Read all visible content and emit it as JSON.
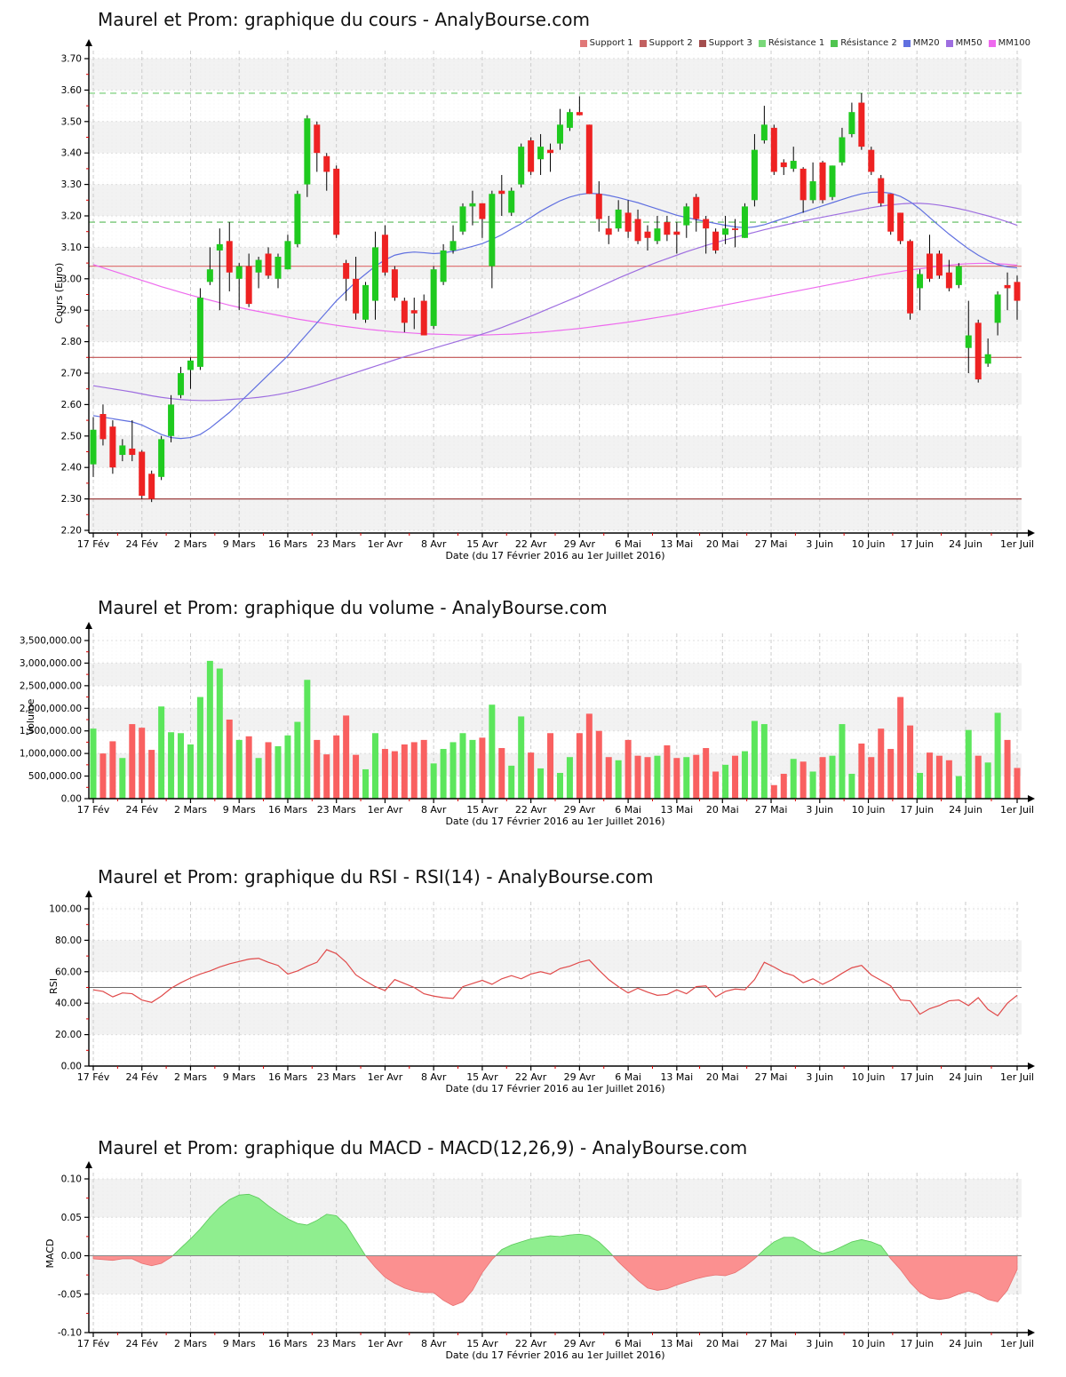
{
  "legend": {
    "items": [
      {
        "label": "Support 1",
        "color": "#e07878"
      },
      {
        "label": "Support 2",
        "color": "#c26060"
      },
      {
        "label": "Support 3",
        "color": "#a34d4d"
      },
      {
        "label": "Résistance 1",
        "color": "#79d879"
      },
      {
        "label": "Résistance 2",
        "color": "#4fc44f"
      },
      {
        "label": "MM20",
        "color": "#6070e0"
      },
      {
        "label": "MM50",
        "color": "#9e6ee0"
      },
      {
        "label": "MM100",
        "color": "#ee6aee"
      }
    ]
  },
  "x_axis": {
    "label": "Date (du 17 Février 2016 au 1er Juillet 2016)",
    "tick_labels": [
      "17 Fév",
      "24 Fév",
      "2 Mars",
      "9 Mars",
      "16 Mars",
      "23 Mars",
      "1er Avr",
      "8 Avr",
      "15 Avr",
      "22 Avr",
      "29 Avr",
      "6 Mai",
      "13 Mai",
      "20 Mai",
      "27 Mai",
      "3 Juin",
      "10 Juin",
      "17 Juin",
      "24 Juin",
      "1er Juil"
    ],
    "tick_positions": [
      0,
      5,
      10,
      15,
      20,
      25,
      30,
      35,
      40,
      45,
      50,
      55,
      60,
      64.7,
      69.7,
      74.7,
      79.7,
      84.7,
      89.7,
      95
    ]
  },
  "chart_data": [
    {
      "type": "candlestick",
      "title": "Maurel et Prom: graphique du cours - AnalyBourse.com",
      "ylabel": "Cours (Euro)",
      "xlabel": "Date (du 17 Février 2016 au 1er Juillet 2016)",
      "ylim": [
        2.2,
        3.7
      ],
      "y_ticks": [
        "2.20",
        "2.30",
        "2.40",
        "2.50",
        "2.60",
        "2.70",
        "2.80",
        "2.90",
        "3.00",
        "3.10",
        "3.20",
        "3.30",
        "3.40",
        "3.50",
        "3.60",
        "3.70"
      ],
      "colors": {
        "up": "#1fca1f",
        "down": "#ee2222",
        "wick": "#000000"
      },
      "levels": {
        "supports": [
          {
            "label": "Support 1",
            "value": 3.04,
            "color": "#e07878"
          },
          {
            "label": "Support 2",
            "value": 2.75,
            "color": "#c05050"
          },
          {
            "label": "Support 3",
            "value": 2.3,
            "color": "#9c3e3e"
          }
        ],
        "resistances": [
          {
            "label": "Résistance 1",
            "value": 3.59,
            "color": "#6cc96c"
          },
          {
            "label": "Résistance 2",
            "value": 3.18,
            "color": "#57bb57"
          }
        ]
      },
      "series": {
        "open": [
          2.41,
          2.57,
          2.53,
          2.44,
          2.46,
          2.45,
          2.38,
          2.37,
          2.5,
          2.63,
          2.71,
          2.72,
          2.99,
          3.09,
          3.12,
          3.0,
          3.04,
          3.02,
          3.08,
          3.0,
          3.03,
          3.11,
          3.3,
          3.49,
          3.39,
          3.35,
          3.05,
          3.0,
          2.87,
          2.93,
          3.14,
          3.03,
          2.93,
          2.9,
          2.93,
          2.85,
          2.99,
          3.09,
          3.15,
          3.23,
          3.24,
          3.04,
          3.28,
          3.21,
          3.3,
          3.44,
          3.38,
          3.41,
          3.43,
          3.48,
          3.53,
          3.49,
          3.27,
          3.16,
          3.16,
          3.21,
          3.19,
          3.15,
          3.12,
          3.18,
          3.15,
          3.17,
          3.26,
          3.19,
          3.15,
          3.14,
          3.16,
          3.13,
          3.25,
          3.44,
          3.48,
          3.37,
          3.35,
          3.35,
          3.25,
          3.37,
          3.26,
          3.37,
          3.46,
          3.56,
          3.41,
          3.32,
          3.27,
          3.21,
          3.12,
          2.97,
          3.08,
          3.08,
          3.02,
          2.98,
          2.78,
          2.86,
          2.73,
          2.86,
          2.98,
          2.99
        ],
        "high": [
          2.56,
          2.6,
          2.55,
          2.49,
          2.55,
          2.455,
          2.39,
          2.5,
          2.63,
          2.72,
          2.75,
          2.97,
          3.1,
          3.16,
          3.18,
          3.05,
          3.08,
          3.07,
          3.1,
          3.08,
          3.14,
          3.28,
          3.52,
          3.5,
          3.4,
          3.36,
          3.06,
          3.07,
          2.99,
          3.15,
          3.17,
          3.04,
          2.94,
          2.94,
          2.95,
          3.04,
          3.11,
          3.17,
          3.24,
          3.28,
          3.24,
          3.28,
          3.33,
          3.29,
          3.43,
          3.45,
          3.46,
          3.43,
          3.54,
          3.54,
          3.58,
          3.49,
          3.31,
          3.2,
          3.25,
          3.25,
          3.22,
          3.17,
          3.2,
          3.2,
          3.18,
          3.24,
          3.27,
          3.2,
          3.16,
          3.2,
          3.19,
          3.24,
          3.46,
          3.55,
          3.49,
          3.38,
          3.42,
          3.355,
          3.37,
          3.375,
          3.36,
          3.48,
          3.56,
          3.59,
          3.42,
          3.33,
          3.27,
          3.21,
          3.125,
          3.03,
          3.14,
          3.09,
          3.06,
          3.05,
          2.93,
          2.87,
          2.81,
          2.96,
          3.02,
          3.01
        ],
        "low": [
          2.37,
          2.47,
          2.38,
          2.42,
          2.42,
          2.3,
          2.29,
          2.36,
          2.48,
          2.62,
          2.65,
          2.71,
          2.98,
          2.9,
          2.96,
          2.9,
          2.91,
          2.97,
          3.0,
          2.97,
          3.03,
          3.1,
          3.26,
          3.34,
          3.28,
          3.13,
          2.93,
          2.87,
          2.86,
          2.87,
          3.01,
          2.93,
          2.83,
          2.84,
          2.82,
          2.84,
          2.98,
          3.08,
          3.14,
          3.17,
          3.13,
          2.97,
          3.2,
          3.2,
          3.29,
          3.33,
          3.33,
          3.34,
          3.41,
          3.47,
          3.52,
          3.27,
          3.15,
          3.11,
          3.15,
          3.13,
          3.11,
          3.09,
          3.11,
          3.12,
          3.08,
          3.13,
          3.15,
          3.08,
          3.08,
          3.11,
          3.1,
          3.13,
          3.23,
          3.43,
          3.33,
          3.33,
          3.34,
          3.21,
          3.24,
          3.24,
          3.25,
          3.36,
          3.45,
          3.41,
          3.33,
          3.23,
          3.14,
          3.11,
          2.87,
          2.9,
          2.99,
          3.0,
          2.96,
          2.97,
          2.7,
          2.67,
          2.72,
          2.82,
          2.9,
          2.87
        ],
        "close": [
          2.52,
          2.49,
          2.4,
          2.47,
          2.44,
          2.31,
          2.3,
          2.49,
          2.6,
          2.7,
          2.74,
          2.94,
          3.03,
          3.11,
          3.02,
          3.04,
          2.92,
          3.06,
          3.01,
          3.07,
          3.12,
          3.27,
          3.51,
          3.4,
          3.34,
          3.14,
          3.0,
          2.89,
          2.98,
          3.1,
          3.02,
          2.94,
          2.86,
          2.89,
          2.82,
          3.03,
          3.09,
          3.12,
          3.23,
          3.24,
          3.19,
          3.27,
          3.27,
          3.28,
          3.42,
          3.34,
          3.42,
          3.4,
          3.49,
          3.53,
          3.52,
          3.27,
          3.19,
          3.14,
          3.22,
          3.15,
          3.12,
          3.13,
          3.16,
          3.14,
          3.14,
          3.23,
          3.19,
          3.16,
          3.09,
          3.16,
          3.155,
          3.23,
          3.41,
          3.49,
          3.34,
          3.355,
          3.375,
          3.25,
          3.31,
          3.25,
          3.36,
          3.45,
          3.53,
          3.42,
          3.34,
          3.24,
          3.15,
          3.12,
          2.89,
          3.015,
          3.0,
          3.01,
          2.97,
          3.04,
          2.82,
          2.68,
          2.76,
          2.95,
          2.97,
          2.93
        ]
      },
      "overlays": {
        "mm20": [
          2.565,
          2.56,
          2.555,
          2.55,
          2.545,
          2.535,
          2.52,
          2.505,
          2.495,
          2.492,
          2.495,
          2.505,
          2.525,
          2.55,
          2.575,
          2.605,
          2.635,
          2.665,
          2.695,
          2.725,
          2.755,
          2.79,
          2.825,
          2.86,
          2.895,
          2.93,
          2.96,
          2.99,
          3.015,
          3.04,
          3.06,
          3.075,
          3.082,
          3.085,
          3.083,
          3.08,
          3.082,
          3.088,
          3.095,
          3.103,
          3.112,
          3.125,
          3.14,
          3.158,
          3.175,
          3.195,
          3.215,
          3.232,
          3.248,
          3.26,
          3.268,
          3.272,
          3.27,
          3.265,
          3.258,
          3.25,
          3.242,
          3.232,
          3.222,
          3.212,
          3.202,
          3.195,
          3.188,
          3.182,
          3.176,
          3.17,
          3.165,
          3.162,
          3.165,
          3.172,
          3.182,
          3.192,
          3.202,
          3.212,
          3.222,
          3.232,
          3.242,
          3.252,
          3.262,
          3.27,
          3.275,
          3.276,
          3.272,
          3.262,
          3.245,
          3.222,
          3.195,
          3.168,
          3.142,
          3.118,
          3.095,
          3.075,
          3.058,
          3.045,
          3.038,
          3.035
        ],
        "mm50": [
          2.66,
          2.655,
          2.65,
          2.645,
          2.64,
          2.634,
          2.628,
          2.623,
          2.619,
          2.616,
          2.614,
          2.613,
          2.613,
          2.614,
          2.616,
          2.618,
          2.62,
          2.623,
          2.627,
          2.632,
          2.638,
          2.645,
          2.653,
          2.662,
          2.672,
          2.682,
          2.692,
          2.702,
          2.712,
          2.722,
          2.732,
          2.742,
          2.752,
          2.761,
          2.77,
          2.779,
          2.788,
          2.797,
          2.806,
          2.815,
          2.824,
          2.834,
          2.845,
          2.857,
          2.869,
          2.881,
          2.894,
          2.907,
          2.92,
          2.933,
          2.946,
          2.96,
          2.974,
          2.988,
          3.002,
          3.015,
          3.028,
          3.041,
          3.053,
          3.064,
          3.075,
          3.086,
          3.096,
          3.106,
          3.115,
          3.124,
          3.132,
          3.14,
          3.148,
          3.156,
          3.163,
          3.17,
          3.177,
          3.184,
          3.19,
          3.196,
          3.202,
          3.208,
          3.214,
          3.22,
          3.226,
          3.231,
          3.235,
          3.238,
          3.24,
          3.24,
          3.238,
          3.234,
          3.229,
          3.223,
          3.216,
          3.208,
          3.2,
          3.191,
          3.181,
          3.17
        ],
        "mm100": [
          3.045,
          3.035,
          3.025,
          3.015,
          3.005,
          2.995,
          2.985,
          2.975,
          2.966,
          2.957,
          2.948,
          2.94,
          2.932,
          2.924,
          2.916,
          2.909,
          2.902,
          2.896,
          2.89,
          2.884,
          2.878,
          2.872,
          2.867,
          2.862,
          2.857,
          2.852,
          2.848,
          2.844,
          2.84,
          2.837,
          2.834,
          2.831,
          2.829,
          2.827,
          2.825,
          2.824,
          2.823,
          2.822,
          2.821,
          2.821,
          2.821,
          2.822,
          2.823,
          2.824,
          2.826,
          2.828,
          2.83,
          2.833,
          2.836,
          2.839,
          2.842,
          2.846,
          2.85,
          2.854,
          2.858,
          2.862,
          2.867,
          2.872,
          2.877,
          2.882,
          2.887,
          2.893,
          2.899,
          2.905,
          2.911,
          2.917,
          2.923,
          2.929,
          2.935,
          2.941,
          2.947,
          2.953,
          2.959,
          2.965,
          2.971,
          2.977,
          2.983,
          2.989,
          2.995,
          3.001,
          3.007,
          3.013,
          3.018,
          3.023,
          3.028,
          3.032,
          3.036,
          3.04,
          3.043,
          3.046,
          3.048,
          3.049,
          3.049,
          3.048,
          3.046,
          3.043
        ]
      }
    },
    {
      "type": "bar",
      "title": "Maurel et Prom: graphique du volume - AnalyBourse.com",
      "ylabel": "Volume",
      "xlabel": "Date (du 17 Février 2016 au 1er Juillet 2016)",
      "ylim": [
        0,
        3500000
      ],
      "y_ticks": [
        "0.00",
        "500,000.00",
        "1,000,000.00",
        "1,500,000.00",
        "2,000,000.00",
        "2,500,000.00",
        "3,000,000.00",
        "3,500,000.00"
      ],
      "colors": {
        "up": "#5ce65c",
        "down": "#f96060"
      },
      "values": [
        1550000,
        1000000,
        1270000,
        900000,
        1650000,
        1570000,
        1080000,
        2040000,
        1470000,
        1450000,
        1200000,
        2250000,
        3050000,
        2880000,
        1750000,
        1300000,
        1380000,
        900000,
        1250000,
        1160000,
        1400000,
        1700000,
        2630000,
        1300000,
        980000,
        1400000,
        1840000,
        970000,
        650000,
        1450000,
        1100000,
        1050000,
        1200000,
        1250000,
        1300000,
        780000,
        1100000,
        1250000,
        1450000,
        1300000,
        1350000,
        2080000,
        1120000,
        730000,
        1820000,
        1020000,
        670000,
        1450000,
        570000,
        920000,
        1450000,
        1880000,
        1500000,
        920000,
        850000,
        1300000,
        950000,
        920000,
        950000,
        1180000,
        900000,
        920000,
        970000,
        1120000,
        600000,
        750000,
        950000,
        1050000,
        1720000,
        1650000,
        300000,
        550000,
        880000,
        820000,
        600000,
        920000,
        950000,
        1650000,
        550000,
        1220000,
        920000,
        1550000,
        1100000,
        2250000,
        1620000,
        570000,
        1020000,
        950000,
        850000,
        500000,
        1520000,
        950000,
        800000,
        1900000,
        1300000,
        680000
      ]
    },
    {
      "type": "line",
      "title": "Maurel et Prom: graphique du RSI - RSI(14) - AnalyBourse.com",
      "ylabel": "RSI",
      "xlabel": "Date (du 17 Février 2016 au 1er Juillet 2016)",
      "ylim": [
        0,
        100
      ],
      "y_ticks": [
        "0.00",
        "20.00",
        "40.00",
        "60.00",
        "80.00",
        "100.00"
      ],
      "midline": 50,
      "color": "#e04a4a",
      "values": [
        48.5,
        47.5,
        44.0,
        46.5,
        46.0,
        42.0,
        40.5,
        44.5,
        49.5,
        53.0,
        56.0,
        58.5,
        60.5,
        63.0,
        65.0,
        66.5,
        68.0,
        68.5,
        66.0,
        64.0,
        58.5,
        60.5,
        63.5,
        66.0,
        74.0,
        71.5,
        66.0,
        58.0,
        54.0,
        50.5,
        48.0,
        55.0,
        52.5,
        50.0,
        46.0,
        44.5,
        43.5,
        43.0,
        50.5,
        52.5,
        54.5,
        52.0,
        55.5,
        57.5,
        55.5,
        58.5,
        60.0,
        58.5,
        62.0,
        63.5,
        66.0,
        67.5,
        61.0,
        55.0,
        50.5,
        46.5,
        49.5,
        47.0,
        45.0,
        45.5,
        48.5,
        46.0,
        50.5,
        51.0,
        44.0,
        47.5,
        49.0,
        48.5,
        55.0,
        66.0,
        63.0,
        59.5,
        57.5,
        53.0,
        55.5,
        52.0,
        55.0,
        59.0,
        62.5,
        64.0,
        58.0,
        54.5,
        51.0,
        42.0,
        41.5,
        33.0,
        36.5,
        38.5,
        41.5,
        42.0,
        38.5,
        43.5,
        36.0,
        32.0,
        40.0,
        45.0
      ]
    },
    {
      "type": "area",
      "title": "Maurel et Prom: graphique du MACD - MACD(12,26,9) - AnalyBourse.com",
      "ylabel": "MACD",
      "xlabel": "Date (du 17 Février 2016 au 1er Juillet 2016)",
      "ylim": [
        -0.1,
        0.1
      ],
      "y_ticks": [
        "-0.10",
        "-0.05",
        "0.00",
        "0.05",
        "0.10"
      ],
      "colors": {
        "positive": "#8fee8f",
        "negative": "#fb9090"
      },
      "values": [
        -0.004,
        -0.005,
        -0.006,
        -0.004,
        -0.004,
        -0.01,
        -0.013,
        -0.01,
        -0.002,
        0.01,
        0.022,
        0.035,
        0.05,
        0.063,
        0.073,
        0.079,
        0.08,
        0.075,
        0.065,
        0.056,
        0.048,
        0.042,
        0.04,
        0.046,
        0.054,
        0.052,
        0.04,
        0.02,
        0.0,
        -0.015,
        -0.028,
        -0.036,
        -0.042,
        -0.046,
        -0.048,
        -0.048,
        -0.058,
        -0.065,
        -0.06,
        -0.045,
        -0.022,
        -0.005,
        0.008,
        0.014,
        0.018,
        0.022,
        0.024,
        0.026,
        0.025,
        0.027,
        0.028,
        0.026,
        0.018,
        0.006,
        -0.008,
        -0.02,
        -0.032,
        -0.042,
        -0.045,
        -0.043,
        -0.038,
        -0.034,
        -0.03,
        -0.027,
        -0.025,
        -0.026,
        -0.022,
        -0.014,
        -0.004,
        0.008,
        0.018,
        0.024,
        0.024,
        0.018,
        0.008,
        0.003,
        0.006,
        0.012,
        0.018,
        0.021,
        0.018,
        0.013,
        -0.004,
        -0.018,
        -0.035,
        -0.048,
        -0.055,
        -0.057,
        -0.055,
        -0.05,
        -0.046,
        -0.05,
        -0.057,
        -0.06,
        -0.045,
        -0.018
      ]
    }
  ]
}
